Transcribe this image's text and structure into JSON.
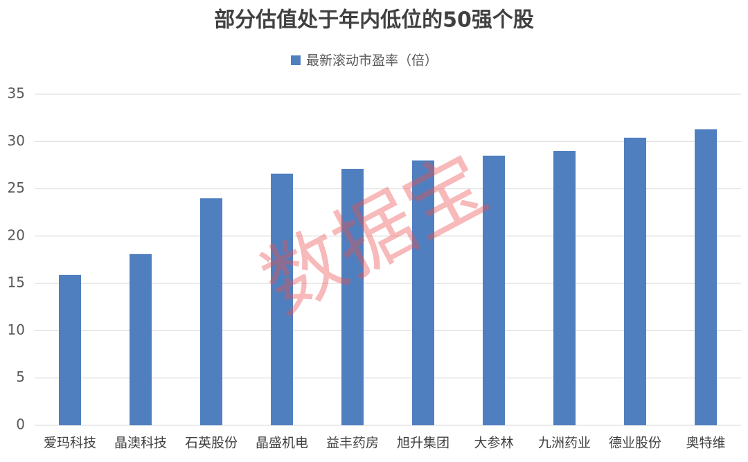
{
  "chart_data": {
    "type": "bar",
    "title": "部分估值处于年内低位的50强个股",
    "legend": "最新滚动市盈率（倍）",
    "categories": [
      "爱玛科技",
      "晶澳科技",
      "石英股份",
      "晶盛机电",
      "益丰药房",
      "旭升集团",
      "大参林",
      "九洲药业",
      "德业股份",
      "奥特维"
    ],
    "values": [
      15.9,
      18.1,
      24.0,
      26.6,
      27.1,
      28.0,
      28.5,
      29.0,
      30.4,
      31.3
    ],
    "color": "#4f7fbf",
    "ylim": [
      0,
      35
    ],
    "yticks": [
      0,
      5,
      10,
      15,
      20,
      25,
      30,
      35
    ],
    "grid": true,
    "watermark": "数据宝"
  }
}
